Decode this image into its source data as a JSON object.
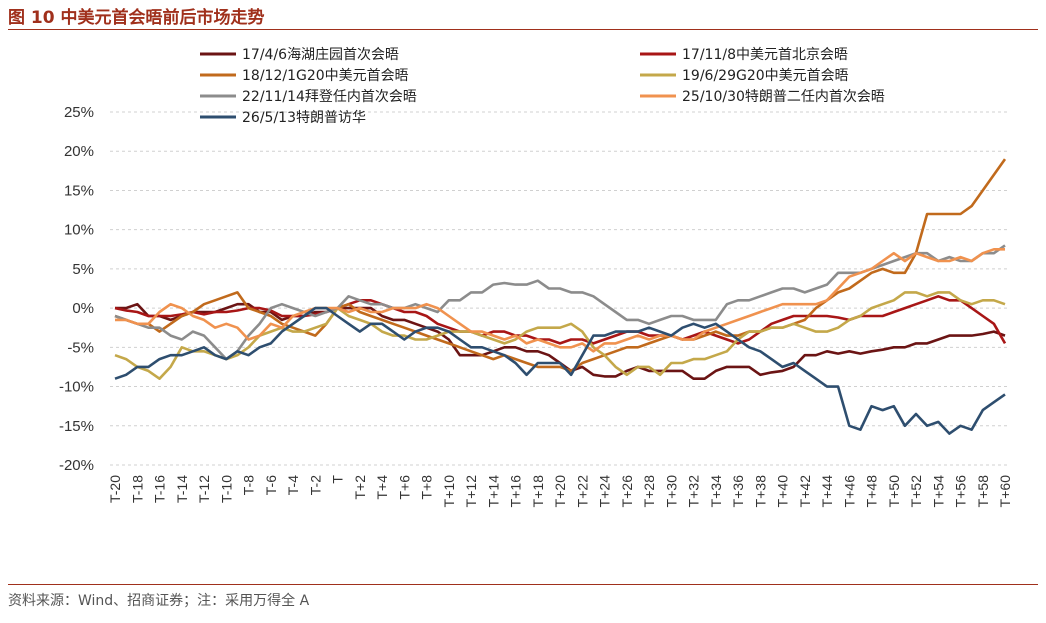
{
  "header": {
    "title": "图 10  中美元首会晤前后市场走势"
  },
  "footer": {
    "source": "资料来源：Wind、招商证券；注：采用万得全 A"
  },
  "chart_data": {
    "type": "line",
    "title": "",
    "xlabel": "",
    "ylabel": "",
    "ylim": [
      -20,
      25
    ],
    "yticks": [
      -20,
      -15,
      -10,
      -5,
      0,
      5,
      10,
      15,
      20,
      25
    ],
    "ytick_labels": [
      "-20%",
      "-15%",
      "-10%",
      "-5%",
      "0%",
      "5%",
      "10%",
      "15%",
      "20%",
      "25%"
    ],
    "x": [
      "T-20",
      "T-19",
      "T-18",
      "T-17",
      "T-16",
      "T-15",
      "T-14",
      "T-13",
      "T-12",
      "T-11",
      "T-10",
      "T-9",
      "T-8",
      "T-7",
      "T-6",
      "T-5",
      "T-4",
      "T-3",
      "T-2",
      "T-1",
      "T",
      "T+1",
      "T+2",
      "T+3",
      "T+4",
      "T+5",
      "T+6",
      "T+7",
      "T+8",
      "T+9",
      "T+10",
      "T+11",
      "T+12",
      "T+13",
      "T+14",
      "T+15",
      "T+16",
      "T+17",
      "T+18",
      "T+19",
      "T+20",
      "T+21",
      "T+22",
      "T+23",
      "T+24",
      "T+25",
      "T+26",
      "T+27",
      "T+28",
      "T+29",
      "T+30",
      "T+31",
      "T+32",
      "T+33",
      "T+34",
      "T+35",
      "T+36",
      "T+37",
      "T+38",
      "T+39",
      "T+40",
      "T+41",
      "T+42",
      "T+43",
      "T+44",
      "T+45",
      "T+46",
      "T+47",
      "T+48",
      "T+49",
      "T+50",
      "T+51",
      "T+52",
      "T+53",
      "T+54",
      "T+55",
      "T+56",
      "T+57",
      "T+58",
      "T+59",
      "T+60"
    ],
    "xtick_labels": [
      "T-20",
      "T-18",
      "T-16",
      "T-14",
      "T-12",
      "T-10",
      "T-8",
      "T-6",
      "T-4",
      "T-2",
      "T",
      "T+2",
      "T+4",
      "T+6",
      "T+8",
      "T+10",
      "T+12",
      "T+14",
      "T+16",
      "T+18",
      "T+20",
      "T+22",
      "T+24",
      "T+26",
      "T+28",
      "T+30",
      "T+32",
      "T+34",
      "T+36",
      "T+38",
      "T+40",
      "T+42",
      "T+44",
      "T+46",
      "T+48",
      "T+50",
      "T+52",
      "T+54",
      "T+56",
      "T+58",
      "T+60"
    ],
    "grid": true,
    "legend_position": "top",
    "series": [
      {
        "name": "17/4/6海湖庄园首次会晤",
        "color": "#6b1414",
        "values": [
          0,
          0,
          0.5,
          -1,
          -1,
          -1.5,
          -1,
          -0.5,
          -0.5,
          -0.5,
          0,
          0.5,
          0.5,
          -0.5,
          -0.5,
          -1.5,
          -1,
          -1,
          -0.5,
          -0.5,
          0,
          0,
          0,
          0,
          -1,
          -1.5,
          -1.5,
          -2,
          -2.5,
          -3,
          -4,
          -6,
          -6,
          -6,
          -5.5,
          -5,
          -5,
          -5.5,
          -5.5,
          -6,
          -7,
          -8,
          -7.5,
          -8.5,
          -8.7,
          -8.7,
          -8,
          -7.5,
          -8,
          -8,
          -8,
          -8,
          -9,
          -9,
          -8,
          -7.5,
          -7.5,
          -7.5,
          -8.5,
          -8.2,
          -8,
          -7.5,
          -6,
          -6,
          -5.5,
          -5.8,
          -5.5,
          -5.8,
          -5.5,
          -5.3,
          -5,
          -5,
          -4.5,
          -4.5,
          -4,
          -3.5,
          -3.5,
          -3.5,
          -3.3,
          -3,
          -3.5
        ]
      },
      {
        "name": "17/11/8中美元首北京会晤",
        "color": "#a81616",
        "values": [
          0,
          -0.3,
          -0.5,
          -1,
          -1,
          -1,
          -0.8,
          -0.5,
          -0.8,
          -0.5,
          -0.5,
          -0.3,
          0,
          0,
          -0.3,
          -1,
          -1,
          -1,
          -0.8,
          -0.5,
          0,
          0.5,
          1,
          1,
          0.5,
          0,
          -0.5,
          -0.5,
          -1,
          -2,
          -2.5,
          -3,
          -3,
          -3.5,
          -3,
          -3,
          -3.5,
          -3.5,
          -4,
          -4,
          -4.5,
          -4,
          -4,
          -4.5,
          -4,
          -3.5,
          -3,
          -3,
          -3.5,
          -3.5,
          -3.5,
          -4,
          -3.5,
          -3,
          -3.5,
          -4,
          -4.5,
          -4,
          -3,
          -2,
          -1.5,
          -1,
          -1,
          -1,
          -1,
          -1.2,
          -1.5,
          -1,
          -1,
          -1,
          -0.5,
          0,
          0.5,
          1,
          1.5,
          1,
          1,
          0,
          -1,
          -2,
          -4.5
        ]
      },
      {
        "name": "18/12/1G20中美元首会晤",
        "color": "#c16a1c",
        "values": [
          -1,
          -1.5,
          -2,
          -2,
          -3,
          -2,
          -1,
          -0.5,
          0.5,
          1,
          1.5,
          2,
          0,
          -0.5,
          -1,
          -2,
          -2.5,
          -3,
          -3.5,
          -2,
          0,
          0.5,
          -0.5,
          -1,
          -1.5,
          -2,
          -2.5,
          -3,
          -3.5,
          -4,
          -4.5,
          -5,
          -5.5,
          -6,
          -6.5,
          -6,
          -6.5,
          -7,
          -7.5,
          -7.5,
          -7.5,
          -8,
          -7,
          -6.5,
          -6,
          -5.5,
          -5,
          -5,
          -4.5,
          -4,
          -3.5,
          -4,
          -4,
          -3.5,
          -3,
          -3.5,
          -3.5,
          -3,
          -3,
          -2.5,
          -2.5,
          -2,
          -1.5,
          0,
          1,
          2,
          2.5,
          3.5,
          4.5,
          5,
          4.5,
          4.5,
          7,
          12,
          12,
          12,
          12,
          13,
          15,
          17,
          19
        ]
      },
      {
        "name": "19/6/29G20中美元首会晤",
        "color": "#c4a84a",
        "values": [
          -6,
          -6.5,
          -7.5,
          -8,
          -9,
          -7.5,
          -5,
          -5.5,
          -5.5,
          -6,
          -6.5,
          -6,
          -5,
          -3.5,
          -3,
          -2.5,
          -3,
          -3,
          -2.5,
          -2,
          0,
          -1,
          -1.5,
          -2,
          -3,
          -3.5,
          -3.5,
          -4,
          -4,
          -3.5,
          -3,
          -3,
          -3,
          -3.5,
          -4,
          -4.5,
          -4,
          -3,
          -2.5,
          -2.5,
          -2.5,
          -2,
          -3,
          -5,
          -6,
          -7.5,
          -8.5,
          -7.5,
          -7.5,
          -8.5,
          -7,
          -7,
          -6.5,
          -6.5,
          -6,
          -5.5,
          -4,
          -3,
          -3,
          -2.5,
          -2.5,
          -2,
          -2.5,
          -3,
          -3,
          -2.5,
          -1.5,
          -1,
          0,
          0.5,
          1,
          2,
          2,
          1.5,
          2,
          2,
          1,
          0.5,
          1,
          1,
          0.5
        ]
      },
      {
        "name": "22/11/14拜登任内首次会晤",
        "color": "#8c8c8c",
        "values": [
          -1,
          -1.5,
          -2,
          -2.5,
          -2.5,
          -3.5,
          -4,
          -3,
          -3.5,
          -5,
          -6.5,
          -5.5,
          -3.5,
          -2,
          0,
          0.5,
          0,
          -0.5,
          -1,
          -0.5,
          0,
          1.5,
          1,
          0.5,
          0.5,
          0,
          0,
          0.5,
          0,
          -0.5,
          1,
          1,
          2,
          2,
          3,
          3.2,
          3,
          3,
          3.5,
          2.5,
          2.5,
          2,
          2,
          1.5,
          0.5,
          -0.5,
          -1.5,
          -1.5,
          -2,
          -1.5,
          -1,
          -1,
          -1.5,
          -1.5,
          -1.5,
          0.5,
          1,
          1,
          1.5,
          2,
          2.5,
          2.5,
          2,
          2.5,
          3,
          4.5,
          4.5,
          4.5,
          5,
          5.5,
          6,
          6.5,
          7,
          7,
          6,
          6.5,
          6,
          6,
          7,
          7,
          8
        ]
      },
      {
        "name": "25/10/30特朗普二任内首次会晤",
        "color": "#f0924f",
        "values": [
          -1.5,
          -1.5,
          -2,
          -2,
          -0.5,
          0.5,
          0,
          -1,
          -1.5,
          -2.5,
          -2,
          -2.5,
          -4,
          -3.5,
          -2,
          -2.5,
          -1,
          -0.5,
          0,
          0,
          0,
          -0.5,
          0,
          -0.5,
          -0.5,
          0,
          0,
          0,
          0.5,
          0,
          -1,
          -2,
          -3,
          -3,
          -3.5,
          -4,
          -3.5,
          -4.5,
          -4,
          -4.5,
          -5,
          -5,
          -4.5,
          -5.5,
          -4.5,
          -4.5,
          -4,
          -3.5,
          -4,
          -3.5,
          -3.5,
          -4,
          -4,
          -3,
          -2.5,
          -2,
          -1.5,
          -1,
          -0.5,
          0,
          0.5,
          0.5,
          0.5,
          0.5,
          1,
          2.5,
          4,
          4.5,
          5,
          6,
          7,
          6,
          7,
          6.5,
          6,
          6,
          6.5,
          6,
          7,
          7.5,
          7.5
        ]
      },
      {
        "name": "26/5/13特朗普访华",
        "color": "#2e4e6f",
        "values": [
          -9,
          -8.5,
          -7.5,
          -7.5,
          -6.5,
          -6,
          -6,
          -5.5,
          -5,
          -6,
          -6.5,
          -5.5,
          -6,
          -5,
          -4.5,
          -3,
          -2,
          -1,
          0,
          0,
          -1,
          -2,
          -3,
          -2,
          -2,
          -3,
          -4,
          -3,
          -2.5,
          -2.5,
          -3,
          -4,
          -5,
          -5,
          -5.5,
          -6,
          -7,
          -8.5,
          -7,
          -7,
          -7,
          -8.5,
          -6,
          -3.5,
          -3.5,
          -3,
          -3,
          -3,
          -2.5,
          -3,
          -3.5,
          -2.5,
          -2,
          -2.5,
          -2,
          -3,
          -4,
          -5,
          -5.5,
          -6.5,
          -7.5,
          -7,
          -8,
          -9,
          -10,
          -10,
          -15,
          -15.5,
          -12.5,
          -13,
          -12.5,
          -15,
          -13.5,
          -15,
          -14.5,
          -16,
          -15,
          -15.5,
          -13,
          -12,
          -11
        ]
      }
    ]
  }
}
